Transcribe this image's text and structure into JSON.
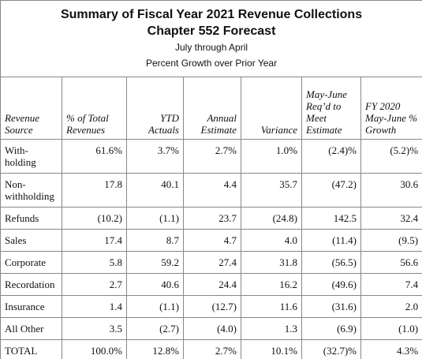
{
  "title": {
    "lines": [
      "Summary of Fiscal Year 2021 Revenue Collections",
      "Chapter 552 Forecast",
      "July through April",
      "Percent Growth over Prior Year"
    ]
  },
  "table": {
    "header": [
      "Revenue Source",
      "% of Total Revenues",
      "YTD Actuals",
      "Annual Estimate",
      "Variance",
      "May-June Req’d to Meet Estimate",
      "FY 2020 May-June % Growth"
    ],
    "rows": [
      [
        "With-holding",
        "61.6%",
        "3.7%",
        "2.7%",
        "1.0%",
        "(2.4)%",
        "(5.2)%"
      ],
      [
        "Non-withholding",
        "17.8",
        "40.1",
        "4.4",
        "35.7",
        "(47.2)",
        "30.6"
      ],
      [
        "Refunds",
        "(10.2)",
        "(1.1)",
        "23.7",
        "(24.8)",
        "142.5",
        "32.4"
      ],
      [
        "Sales",
        "17.4",
        "8.7",
        "4.7",
        "4.0",
        "(11.4)",
        "(9.5)"
      ],
      [
        "Corporate",
        "5.8",
        "59.2",
        "27.4",
        "31.8",
        "(56.5)",
        "56.6"
      ],
      [
        "Recordation",
        "2.7",
        "40.6",
        "24.4",
        "16.2",
        "(49.6)",
        "7.4"
      ],
      [
        "Insurance",
        "1.4",
        "(1.1)",
        "(12.7)",
        "11.6",
        "(31.6)",
        "2.0"
      ],
      [
        "All Other",
        "3.5",
        "(2.7)",
        "(4.0)",
        "1.3",
        "(6.9)",
        "(1.0)"
      ],
      [
        "TOTAL",
        "100.0%",
        "12.8%",
        "2.7%",
        "10.1%",
        "(32.7)%",
        "4.3%"
      ]
    ]
  }
}
